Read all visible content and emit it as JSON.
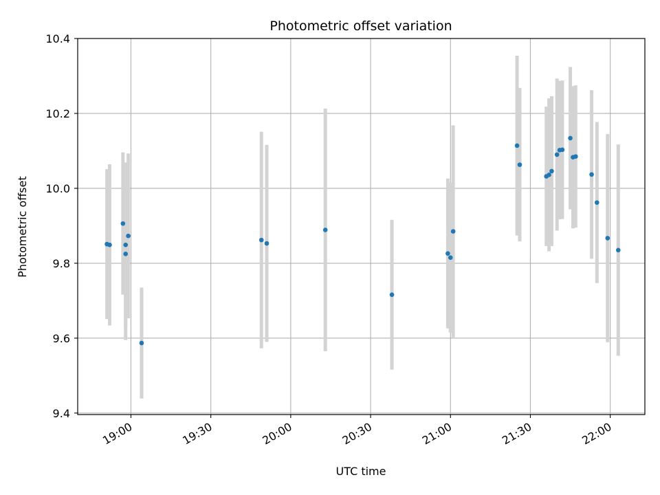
{
  "chart_data": {
    "type": "scatter",
    "title": "Photometric offset variation",
    "xlabel": "UTC time",
    "ylabel": "Photometric offset",
    "x_axis_kind": "time",
    "xlim": [
      "18:40",
      "22:13"
    ],
    "ylim": [
      9.396,
      10.4
    ],
    "x_ticks": [
      "19:00",
      "19:30",
      "20:00",
      "20:30",
      "21:00",
      "21:30",
      "22:00"
    ],
    "y_ticks": [
      9.4,
      9.6,
      9.8,
      10.0,
      10.2,
      10.4
    ],
    "y_tick_labels": [
      "9.4",
      "9.6",
      "9.8",
      "10.0",
      "10.2",
      "10.4"
    ],
    "grid": true,
    "colors": {
      "points": "#1f77b4",
      "error_bars": "#d3d3d3",
      "grid": "#b0b0b0"
    },
    "points": [
      {
        "x": "18:51",
        "y": 9.851,
        "yerr": 0.2
      },
      {
        "x": "18:52",
        "y": 9.849,
        "yerr": 0.215
      },
      {
        "x": "18:57",
        "y": 9.906,
        "yerr": 0.19
      },
      {
        "x": "18:58",
        "y": 9.849,
        "yerr": 0.22
      },
      {
        "x": "18:58",
        "y": 9.825,
        "yerr": 0.23
      },
      {
        "x": "18:59",
        "y": 9.873,
        "yerr": 0.22
      },
      {
        "x": "19:04",
        "y": 9.587,
        "yerr": 0.148
      },
      {
        "x": "19:49",
        "y": 9.862,
        "yerr": 0.289
      },
      {
        "x": "19:51",
        "y": 9.853,
        "yerr": 0.263
      },
      {
        "x": "20:13",
        "y": 9.889,
        "yerr": 0.324
      },
      {
        "x": "20:38",
        "y": 9.716,
        "yerr": 0.2
      },
      {
        "x": "20:59",
        "y": 9.826,
        "yerr": 0.2
      },
      {
        "x": "21:00",
        "y": 9.815,
        "yerr": 0.2
      },
      {
        "x": "21:01",
        "y": 9.885,
        "yerr": 0.283
      },
      {
        "x": "21:25",
        "y": 10.114,
        "yerr": 0.24
      },
      {
        "x": "21:26",
        "y": 10.063,
        "yerr": 0.205
      },
      {
        "x": "21:36",
        "y": 10.032,
        "yerr": 0.186
      },
      {
        "x": "21:37",
        "y": 10.036,
        "yerr": 0.204
      },
      {
        "x": "21:38",
        "y": 10.046,
        "yerr": 0.2
      },
      {
        "x": "21:40",
        "y": 10.09,
        "yerr": 0.203
      },
      {
        "x": "21:41",
        "y": 10.102,
        "yerr": 0.185
      },
      {
        "x": "21:42",
        "y": 10.103,
        "yerr": 0.185
      },
      {
        "x": "21:45",
        "y": 10.134,
        "yerr": 0.19
      },
      {
        "x": "21:46",
        "y": 10.083,
        "yerr": 0.19
      },
      {
        "x": "21:47",
        "y": 10.085,
        "yerr": 0.19
      },
      {
        "x": "21:53",
        "y": 10.037,
        "yerr": 0.225
      },
      {
        "x": "21:55",
        "y": 9.962,
        "yerr": 0.215
      },
      {
        "x": "21:59",
        "y": 9.867,
        "yerr": 0.278
      },
      {
        "x": "22:03",
        "y": 9.835,
        "yerr": 0.282
      }
    ]
  }
}
